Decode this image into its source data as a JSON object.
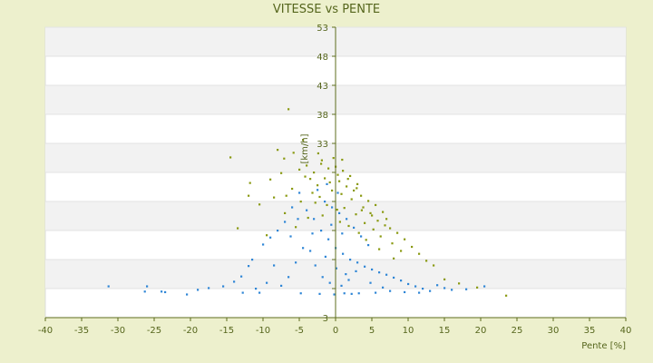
{
  "chart_data": {
    "type": "scatter",
    "title": "VITESSE vs PENTE",
    "xlabel": "Pente [%]",
    "ylabel": "[km/h]",
    "xlim": [
      -40,
      40
    ],
    "ylim": [
      3,
      53
    ],
    "x_ticks": [
      -40,
      -35,
      -30,
      -25,
      -20,
      -15,
      -10,
      -5,
      0,
      5,
      10,
      15,
      20,
      25,
      30,
      35,
      40
    ],
    "y_ticks": [
      3,
      8,
      13,
      18,
      23,
      28,
      33,
      38,
      43,
      48,
      53
    ],
    "y_tick_labels": [
      "3",
      "",
      "",
      "",
      "",
      "",
      "33",
      "38",
      "43",
      "48",
      "53"
    ],
    "grid": "horizontal bands",
    "legend": "none",
    "colors": {
      "series_olive": "#8a9a12",
      "series_blue": "#2f86d6",
      "axis": "#5d6d1d",
      "band": "#f2f2f2"
    },
    "series": [
      {
        "color": "#8a9a12",
        "points": [
          [
            -6.5,
            38.9
          ],
          [
            -14.5,
            30.6
          ],
          [
            -4.5,
            33.6
          ],
          [
            -8,
            31.9
          ],
          [
            -7.1,
            30.4
          ],
          [
            -5.8,
            31.4
          ],
          [
            -2.4,
            31.3
          ],
          [
            0.9,
            30.2
          ],
          [
            -11.8,
            26.2
          ],
          [
            -12.0,
            24.0
          ],
          [
            -9.0,
            26.8
          ],
          [
            -7.5,
            27.9
          ],
          [
            -5.0,
            28.5
          ],
          [
            -4.0,
            29.2
          ],
          [
            -3.0,
            28.0
          ],
          [
            -2.0,
            29.5
          ],
          [
            -1.0,
            28.7
          ],
          [
            0.0,
            29.0
          ],
          [
            1.0,
            28.3
          ],
          [
            2.0,
            27.4
          ],
          [
            3.0,
            26.0
          ],
          [
            -3.5,
            26.9
          ],
          [
            -1.5,
            27.0
          ],
          [
            0.5,
            26.5
          ],
          [
            1.5,
            25.6
          ],
          [
            2.5,
            24.9
          ],
          [
            3.5,
            24.0
          ],
          [
            4.5,
            23.1
          ],
          [
            5.5,
            22.4
          ],
          [
            6.5,
            21.2
          ],
          [
            7.0,
            20.0
          ],
          [
            -6.0,
            25.2
          ],
          [
            -2.5,
            25.8
          ],
          [
            -0.5,
            24.9
          ],
          [
            0.8,
            24.3
          ],
          [
            2.2,
            23.4
          ],
          [
            3.8,
            22.0
          ],
          [
            4.8,
            21.0
          ],
          [
            5.8,
            19.7
          ],
          [
            7.5,
            18.4
          ],
          [
            8.5,
            17.6
          ],
          [
            9.5,
            16.5
          ],
          [
            10.5,
            15.2
          ],
          [
            11.5,
            14.0
          ],
          [
            -8.5,
            23.7
          ],
          [
            -4.8,
            23.0
          ],
          [
            -2.8,
            22.8
          ],
          [
            -1.2,
            22.4
          ],
          [
            0.2,
            21.6
          ],
          [
            1.2,
            21.9
          ],
          [
            2.8,
            20.8
          ],
          [
            4.0,
            19.3
          ],
          [
            5.2,
            18.2
          ],
          [
            6.2,
            17.0
          ],
          [
            7.8,
            15.8
          ],
          [
            9.0,
            14.5
          ],
          [
            12.5,
            12.8
          ],
          [
            13.5,
            12.0
          ],
          [
            -10.5,
            22.5
          ],
          [
            -7.0,
            21.0
          ],
          [
            -3.8,
            20.2
          ],
          [
            -1.8,
            20.6
          ],
          [
            0.6,
            19.5
          ],
          [
            1.8,
            18.8
          ],
          [
            3.2,
            17.6
          ],
          [
            4.2,
            16.4
          ],
          [
            6.0,
            14.8
          ],
          [
            8.0,
            13.2
          ],
          [
            15.0,
            9.6
          ],
          [
            17.0,
            8.9
          ],
          [
            19.5,
            8.2
          ],
          [
            23.5,
            6.8
          ],
          [
            -13.5,
            18.4
          ],
          [
            -9.5,
            17.2
          ],
          [
            -5.5,
            18.6
          ],
          [
            -3.2,
            24.5
          ],
          [
            -0.8,
            26.3
          ],
          [
            0.3,
            27.6
          ],
          [
            1.7,
            26.9
          ],
          [
            2.9,
            25.3
          ],
          [
            -1.9,
            30.1
          ],
          [
            -0.3,
            30.5
          ],
          [
            -4.2,
            27.3
          ],
          [
            -6.8,
            24.0
          ],
          [
            -2.2,
            23.8
          ],
          [
            3.6,
            21.5
          ],
          [
            5.0,
            20.6
          ],
          [
            6.8,
            18.9
          ]
        ]
      },
      {
        "color": "#2f86d6",
        "points": [
          [
            -31.3,
            8.4
          ],
          [
            -26,
            8.4
          ],
          [
            -26.3,
            7.5
          ],
          [
            -24,
            7.5
          ],
          [
            -23.5,
            7.4
          ],
          [
            -20.5,
            7.0
          ],
          [
            -19.0,
            7.8
          ],
          [
            -17.5,
            8.1
          ],
          [
            -15.5,
            8.4
          ],
          [
            -14.0,
            9.2
          ],
          [
            -13.0,
            10.1
          ],
          [
            -12.0,
            11.9
          ],
          [
            -11.5,
            13.0
          ],
          [
            -10.0,
            15.6
          ],
          [
            -9.0,
            16.8
          ],
          [
            -8.0,
            18.0
          ],
          [
            -7.0,
            19.5
          ],
          [
            -6.0,
            22.0
          ],
          [
            -5.0,
            24.5
          ],
          [
            -4.0,
            21.5
          ],
          [
            -3.0,
            20.0
          ],
          [
            -2.0,
            18.0
          ],
          [
            -1.0,
            16.5
          ],
          [
            0.0,
            15.0
          ],
          [
            1.0,
            14.0
          ],
          [
            2.0,
            13.0
          ],
          [
            3.0,
            12.5
          ],
          [
            4.0,
            11.8
          ],
          [
            5.0,
            11.3
          ],
          [
            6.0,
            10.8
          ],
          [
            7.0,
            10.4
          ],
          [
            8.0,
            9.9
          ],
          [
            9.0,
            9.4
          ],
          [
            10.0,
            8.8
          ],
          [
            11.0,
            8.4
          ],
          [
            12.0,
            8.0
          ],
          [
            13.0,
            7.6
          ],
          [
            14.0,
            8.6
          ],
          [
            15.0,
            8.1
          ],
          [
            16.0,
            7.8
          ],
          [
            18.0,
            7.9
          ],
          [
            20.5,
            8.4
          ],
          [
            -2.5,
            25.0
          ],
          [
            -1.5,
            23.0
          ],
          [
            -0.5,
            22.0
          ],
          [
            0.5,
            21.0
          ],
          [
            1.5,
            20.0
          ],
          [
            2.5,
            18.5
          ],
          [
            3.5,
            17.0
          ],
          [
            4.5,
            15.5
          ],
          [
            -3.5,
            14.5
          ],
          [
            -2.8,
            12.0
          ],
          [
            -1.8,
            10.0
          ],
          [
            -0.8,
            9.0
          ],
          [
            0.8,
            8.5
          ],
          [
            1.8,
            9.5
          ],
          [
            2.8,
            11.0
          ],
          [
            -6.5,
            10.0
          ],
          [
            -5.5,
            12.5
          ],
          [
            -4.5,
            15.0
          ],
          [
            -7.5,
            8.5
          ],
          [
            -8.5,
            12.0
          ],
          [
            -9.5,
            9.0
          ],
          [
            -10.5,
            7.3
          ],
          [
            -4.8,
            7.2
          ],
          [
            -2.2,
            7.1
          ],
          [
            -0.2,
            7.0
          ],
          [
            1.2,
            7.2
          ],
          [
            2.2,
            7.1
          ],
          [
            3.2,
            7.2
          ],
          [
            5.5,
            7.3
          ],
          [
            7.5,
            7.6
          ],
          [
            -1.2,
            26.0
          ],
          [
            0.3,
            24.5
          ],
          [
            -0.6,
            19.0
          ],
          [
            0.9,
            17.5
          ],
          [
            -1.4,
            13.5
          ],
          [
            0.1,
            11.5
          ],
          [
            1.4,
            10.5
          ],
          [
            -3.2,
            17.5
          ],
          [
            4.8,
            9.0
          ],
          [
            6.5,
            8.2
          ],
          [
            9.5,
            7.4
          ],
          [
            11.5,
            7.3
          ],
          [
            -12.8,
            7.3
          ],
          [
            -11.0,
            8.0
          ],
          [
            -6.2,
            17.0
          ],
          [
            -5.2,
            20.0
          ]
        ]
      }
    ]
  }
}
